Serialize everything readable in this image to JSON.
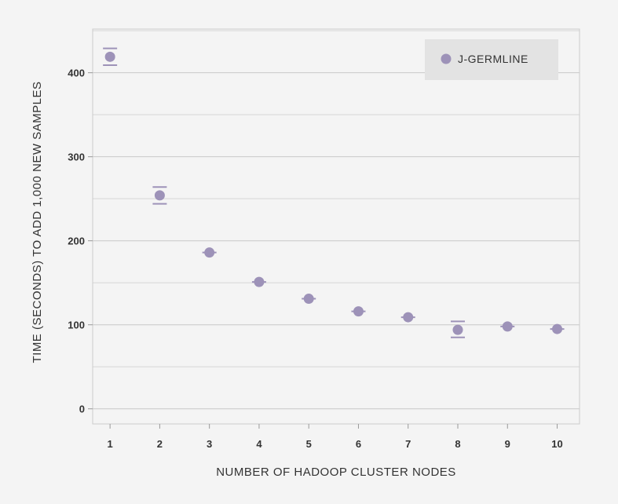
{
  "chart_data": {
    "type": "scatter",
    "title": "",
    "xlabel": "NUMBER OF HADOOP CLUSTER NODES",
    "ylabel": "TIME (SECONDS) TO ADD 1,000 NEW SAMPLES",
    "x_ticks": [
      "1",
      "2",
      "3",
      "4",
      "5",
      "6",
      "7",
      "8",
      "9",
      "10"
    ],
    "y_ticks": [
      "0",
      "100",
      "200",
      "300",
      "400"
    ],
    "xlim": [
      0.65,
      10.45
    ],
    "ylim": [
      -18,
      452
    ],
    "grid": true,
    "legend_position": "top-right",
    "series": [
      {
        "name": "J-GERMLINE",
        "color": "#9d92b8",
        "x": [
          1,
          2,
          3,
          4,
          5,
          6,
          7,
          8,
          9,
          10
        ],
        "y": [
          419,
          254,
          186,
          151,
          131,
          116,
          109,
          94,
          98,
          95
        ],
        "error_low": [
          409,
          244,
          186,
          151,
          131,
          116,
          109,
          85,
          98,
          95
        ],
        "error_high": [
          429,
          264,
          186,
          151,
          131,
          116,
          109,
          104,
          98,
          95
        ]
      }
    ]
  }
}
